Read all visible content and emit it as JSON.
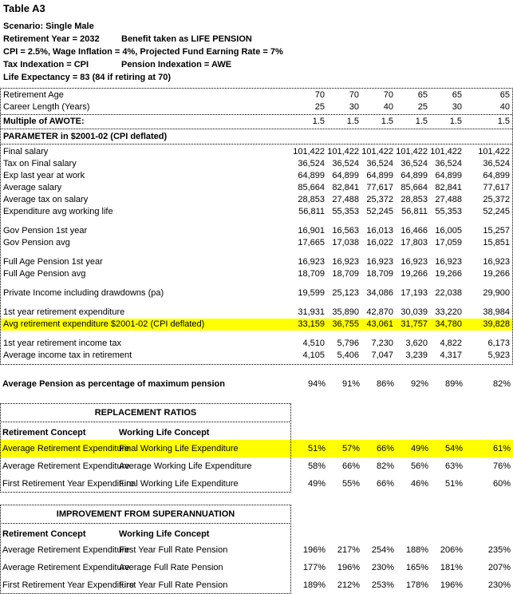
{
  "header": {
    "title": "Table A3",
    "scenario": "Scenario: Single Male",
    "retirement_year": "Retirement Year = 2032",
    "benefit": "Benefit taken as LIFE PENSION",
    "assumptions": "CPI = 2.5%, Wage Inflation = 4%, Projected Fund Earning Rate = 7%",
    "tax_indexation": "Tax Indexation = CPI",
    "pension_indexation": "Pension Indexation = AWE",
    "life_expectancy": "Life Expectancy = 83 (84 if retiring at 70)"
  },
  "main_table": {
    "meta_rows": [
      {
        "label": "Retirement Age",
        "values": [
          "70",
          "70",
          "70",
          "65",
          "65",
          "65"
        ]
      },
      {
        "label": "Career Length (Years)",
        "values": [
          "25",
          "30",
          "40",
          "25",
          "30",
          "40"
        ]
      }
    ],
    "awote_row": {
      "label": "Multiple of AWOTE:",
      "values": [
        "1.5",
        "1.5",
        "1.5",
        "1.5",
        "1.5",
        "1.5"
      ]
    },
    "section_header": "PARAMETER in $2001-02 (CPI deflated)",
    "groups": [
      {
        "rows": [
          {
            "label": "Final salary",
            "values": [
              "101,422",
              "101,422",
              "101,422",
              "101,422",
              "101,422",
              "101,422"
            ]
          },
          {
            "label": "Tax on Final salary",
            "values": [
              "36,524",
              "36,524",
              "36,524",
              "36,524",
              "36,524",
              "36,524"
            ]
          },
          {
            "label": "Exp last year at work",
            "values": [
              "64,899",
              "64,899",
              "64,899",
              "64,899",
              "64,899",
              "64,899"
            ]
          },
          {
            "label": "Average salary",
            "values": [
              "85,664",
              "82,841",
              "77,617",
              "85,664",
              "82,841",
              "77,617"
            ]
          },
          {
            "label": "Average tax on salary",
            "values": [
              "28,853",
              "27,488",
              "25,372",
              "28,853",
              "27,488",
              "25,372"
            ]
          },
          {
            "label": "Expenditure avg working life",
            "values": [
              "56,811",
              "55,353",
              "52,245",
              "56,811",
              "55,353",
              "52,245"
            ]
          }
        ]
      },
      {
        "rows": [
          {
            "label": "Gov Pension 1st year",
            "values": [
              "16,901",
              "16,563",
              "16,013",
              "16,466",
              "16,005",
              "15,257"
            ]
          },
          {
            "label": "Gov Pension avg",
            "values": [
              "17,665",
              "17,038",
              "16,022",
              "17,803",
              "17,059",
              "15,851"
            ]
          }
        ]
      },
      {
        "rows": [
          {
            "label": "Full Age Pension 1st year",
            "values": [
              "16,923",
              "16,923",
              "16,923",
              "16,923",
              "16,923",
              "16,923"
            ]
          },
          {
            "label": "Full Age Pension avg",
            "values": [
              "18,709",
              "18,709",
              "18,709",
              "19,266",
              "19,266",
              "19,266"
            ]
          }
        ]
      },
      {
        "rows": [
          {
            "label": "Private Income including drawdowns (pa)",
            "values": [
              "19,599",
              "25,123",
              "34,086",
              "17,193",
              "22,038",
              "29,900"
            ]
          }
        ]
      },
      {
        "rows": [
          {
            "label": "1st year retirement expenditure",
            "values": [
              "31,931",
              "35,890",
              "42,870",
              "30,039",
              "33,220",
              "38,984"
            ]
          },
          {
            "label": "Avg retirement expenditure $2001-02 (CPI deflated)",
            "values": [
              "33,159",
              "36,755",
              "43,061",
              "31,757",
              "34,780",
              "39,828"
            ],
            "highlight": true
          }
        ]
      },
      {
        "rows": [
          {
            "label": "1st year retirement income tax",
            "values": [
              "4,510",
              "5,796",
              "7,230",
              "3,620",
              "4,822",
              "6,173"
            ]
          },
          {
            "label": "Average income tax in retirement",
            "values": [
              "4,105",
              "5,406",
              "7,047",
              "3,239",
              "4,317",
              "5,923"
            ]
          }
        ]
      }
    ]
  },
  "pension_pct_row": {
    "label": "Average Pension as percentage of maximum pension",
    "values": [
      "94%",
      "91%",
      "86%",
      "92%",
      "89%",
      "82%"
    ]
  },
  "replacement": {
    "title": "REPLACEMENT RATIOS",
    "col1_header": "Retirement Concept",
    "col2_header": "Working Life Concept",
    "rows": [
      {
        "c1": "Average Retirement Expenditure",
        "c2": "Final Working Life Expenditure",
        "values": [
          "51%",
          "57%",
          "66%",
          "49%",
          "54%",
          "61%"
        ],
        "highlight": true
      },
      {
        "c1": "Average Retirement Expenditure",
        "c2": "Average Working Life Expenditure",
        "values": [
          "58%",
          "66%",
          "82%",
          "56%",
          "63%",
          "76%"
        ]
      },
      {
        "c1": "First Retirement Year Expenditure",
        "c2": "Final Working Life Expenditure",
        "values": [
          "49%",
          "55%",
          "66%",
          "46%",
          "51%",
          "60%"
        ]
      }
    ]
  },
  "improvement": {
    "title": "IMPROVEMENT FROM SUPERANNUATION",
    "col1_header": "Retirement Concept",
    "col2_header": "Working Life Concept",
    "rows": [
      {
        "c1": "Average Retirement Expenditure",
        "c2": "First Year Full Rate Pension",
        "values": [
          "196%",
          "217%",
          "254%",
          "188%",
          "206%",
          "235%"
        ]
      },
      {
        "c1": "Average Retirement Expenditure",
        "c2": "Average Full Rate Pension",
        "values": [
          "177%",
          "196%",
          "230%",
          "165%",
          "181%",
          "207%"
        ]
      },
      {
        "c1": "First Retirement Year Expenditure",
        "c2": "First Year Full Rate Pension",
        "values": [
          "189%",
          "212%",
          "253%",
          "178%",
          "196%",
          "230%"
        ]
      }
    ]
  },
  "colors": {
    "highlight": "#FFFF00",
    "border": "#000000",
    "text": "#000000"
  }
}
